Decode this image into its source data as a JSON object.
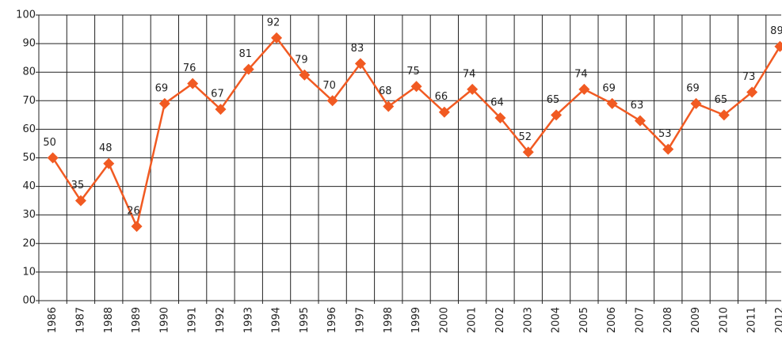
{
  "chart_data": {
    "type": "line",
    "categories": [
      "1986",
      "1987",
      "1988",
      "1989",
      "1990",
      "1991",
      "1992",
      "1993",
      "1994",
      "1995",
      "1996",
      "1997",
      "1998",
      "1999",
      "2000",
      "2001",
      "2002",
      "2003",
      "2004",
      "2005",
      "2006",
      "2007",
      "2008",
      "2009",
      "2010",
      "2011",
      "2012"
    ],
    "values": [
      50,
      35,
      48,
      26,
      69,
      76,
      67,
      81,
      92,
      79,
      70,
      83,
      68,
      75,
      66,
      74,
      64,
      52,
      65,
      74,
      69,
      63,
      53,
      69,
      65,
      73,
      89
    ],
    "color": "#f15a22",
    "ylim": [
      0,
      100
    ],
    "yticks": [
      {
        "value": 0,
        "label": "00"
      },
      10,
      20,
      30,
      40,
      50,
      60,
      70,
      80,
      90,
      100
    ],
    "grid": true
  }
}
